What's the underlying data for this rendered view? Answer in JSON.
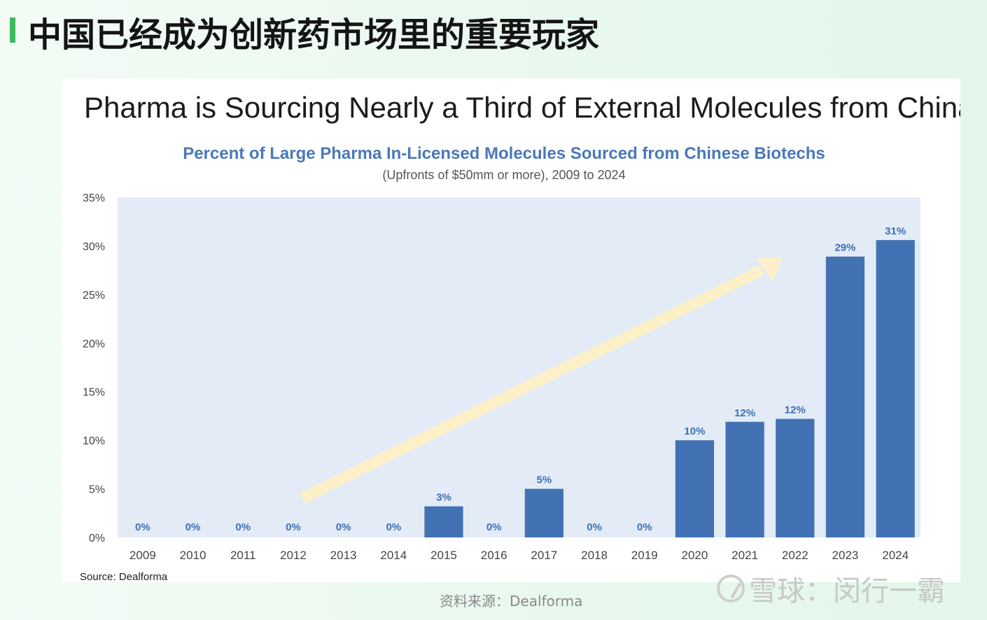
{
  "page": {
    "title": "中国已经成为创新药市场里的重要玩家",
    "footer_source": "资料来源：Dealforma",
    "watermark": "雪球：闵行一霸",
    "accent_color": "#3dba5c"
  },
  "chart_data": {
    "type": "bar",
    "title": "Pharma is Sourcing Nearly a Third of External Molecules from China",
    "subtitle": "Percent of Large Pharma In-Licensed Molecules Sourced from Chinese Biotechs",
    "subsubtitle": "(Upfronts of $50mm or more), 2009 to 2024",
    "source": "Source: Dealforma",
    "categories": [
      "2009",
      "2010",
      "2011",
      "2012",
      "2013",
      "2014",
      "2015",
      "2016",
      "2017",
      "2018",
      "2019",
      "2020",
      "2021",
      "2022",
      "2023",
      "2024"
    ],
    "values": [
      0,
      0,
      0,
      0,
      0,
      0,
      3.2,
      0,
      5.0,
      0,
      0,
      10.0,
      11.9,
      12.2,
      28.9,
      30.6
    ],
    "data_labels": [
      "0%",
      "0%",
      "0%",
      "0%",
      "0%",
      "0%",
      "3%",
      "0%",
      "5%",
      "0%",
      "0%",
      "10%",
      "12%",
      "12%",
      "29%",
      "31%"
    ],
    "y_ticks": [
      "0%",
      "5%",
      "10%",
      "15%",
      "20%",
      "25%",
      "30%",
      "35%"
    ],
    "ylim": [
      0,
      35
    ],
    "bar_color": "#4272b4",
    "plot_background": "#e2ebf6",
    "annotation": "upward trend arrow"
  }
}
